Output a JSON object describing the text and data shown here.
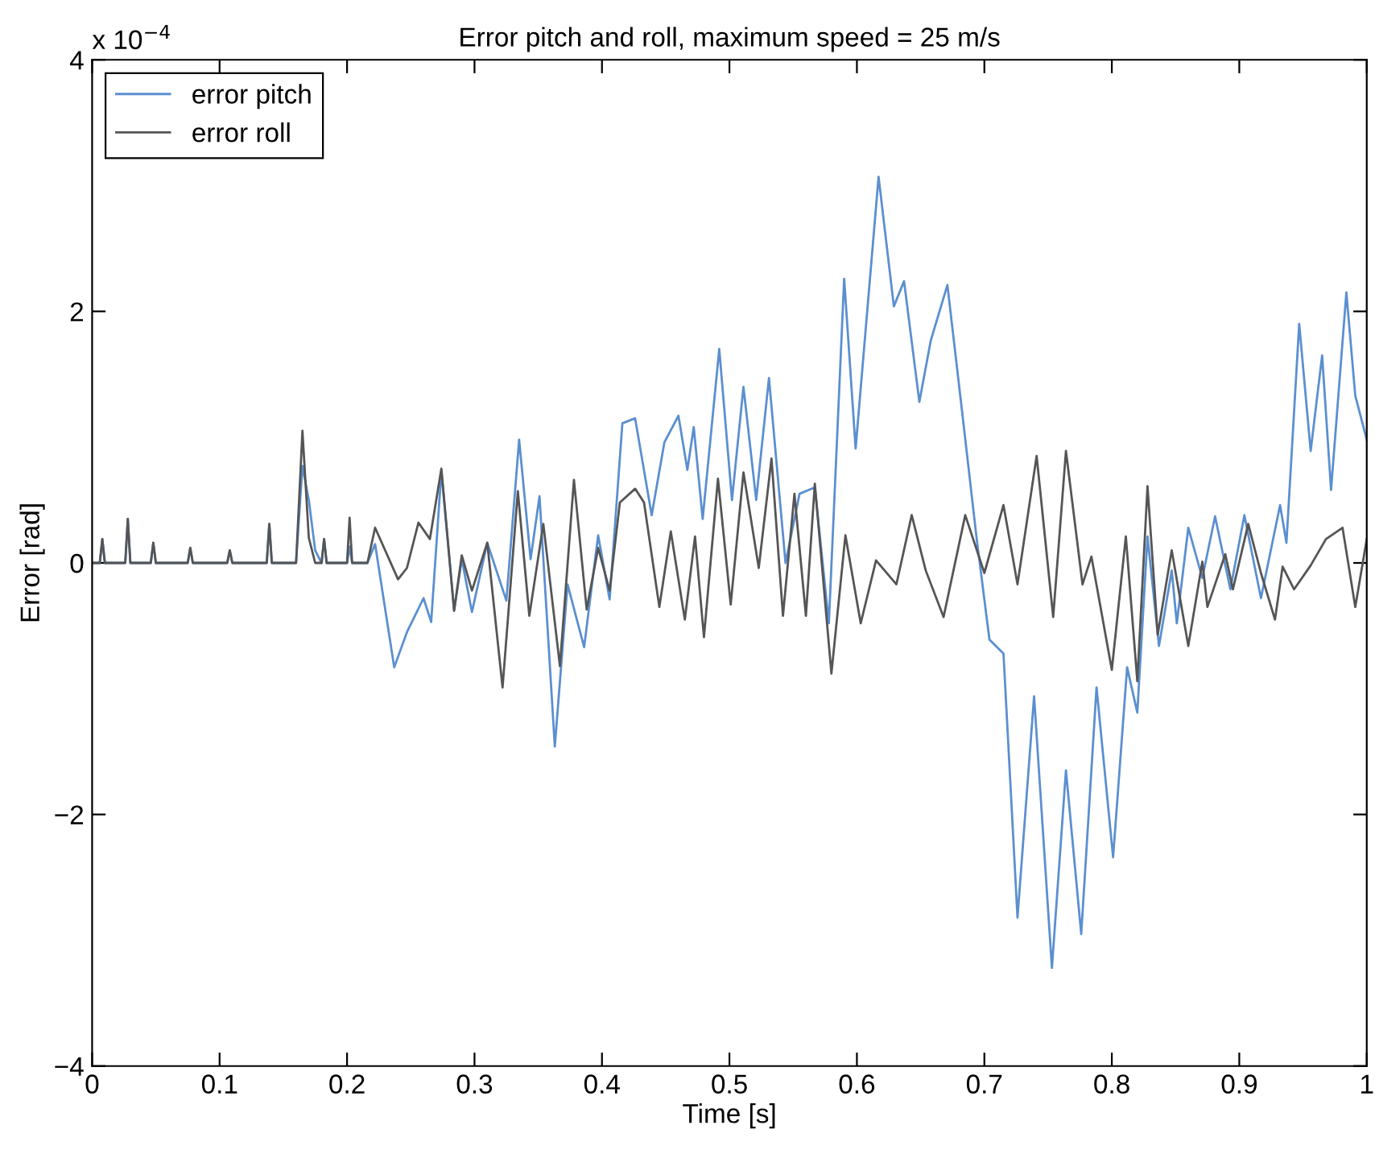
{
  "chart_data": {
    "type": "line",
    "title": "Error pitch and roll, maximum speed = 25 m/s",
    "xlabel": "Time [s]",
    "ylabel": "Error [rad]",
    "annotations": [
      "x 10$^{−4}$"
    ],
    "xlim": [
      0,
      1
    ],
    "xticks": [
      0,
      0.1,
      0.2,
      0.3,
      0.4,
      0.5,
      0.6,
      0.7,
      0.8,
      0.9,
      1
    ],
    "ylim": [
      -4,
      4
    ],
    "yticks": [
      {
        "value": -4,
        "label": "−4"
      },
      {
        "value": -2,
        "label": "−2"
      },
      0,
      2,
      4
    ],
    "grid": false,
    "legend": "top left",
    "marker": "none",
    "line_style": "solid",
    "series": [
      {
        "name": "error pitch",
        "color": "#5b8fd0",
        "x": [
          0,
          0.006,
          0.008,
          0.01,
          0.026,
          0.028,
          0.03,
          0.046,
          0.048,
          0.05,
          0.075,
          0.077,
          0.079,
          0.106,
          0.108,
          0.11,
          0.137,
          0.139,
          0.141,
          0.16,
          0.165,
          0.17,
          0.175,
          0.18,
          0.182,
          0.184,
          0.2,
          0.202,
          0.204,
          0.216,
          0.222,
          0.237,
          0.247,
          0.26,
          0.266,
          0.274,
          0.284,
          0.29,
          0.298,
          0.31,
          0.325,
          0.335,
          0.344,
          0.351,
          0.363,
          0.373,
          0.386,
          0.397,
          0.406,
          0.416,
          0.426,
          0.439,
          0.449,
          0.46,
          0.467,
          0.472,
          0.479,
          0.492,
          0.502,
          0.511,
          0.521,
          0.531,
          0.544,
          0.555,
          0.567,
          0.578,
          0.59,
          0.599,
          0.617,
          0.629,
          0.637,
          0.649,
          0.658,
          0.671,
          0.682,
          0.694,
          0.704,
          0.715,
          0.726,
          0.739,
          0.753,
          0.764,
          0.776,
          0.788,
          0.801,
          0.812,
          0.82,
          0.828,
          0.837,
          0.847,
          0.851,
          0.86,
          0.871,
          0.881,
          0.893,
          0.904,
          0.917,
          0.932,
          0.937,
          0.947,
          0.956,
          0.965,
          0.972,
          0.984,
          0.991,
          1.0
        ],
        "values": [
          0,
          0,
          0.19,
          0,
          0,
          0.35,
          0,
          0,
          0.16,
          0,
          0,
          0.12,
          0,
          0,
          0.1,
          0,
          0,
          0.31,
          0,
          0,
          0.77,
          0.5,
          0.1,
          0,
          0.19,
          0,
          0,
          0.13,
          0,
          0,
          0.15,
          -0.83,
          -0.55,
          -0.28,
          -0.47,
          0.73,
          -0.38,
          0.03,
          -0.39,
          0.16,
          -0.3,
          0.98,
          0.03,
          0.53,
          -1.46,
          -0.17,
          -0.67,
          0.22,
          -0.29,
          1.11,
          1.15,
          0.38,
          0.96,
          1.17,
          0.74,
          1.08,
          0.35,
          1.7,
          0.5,
          1.4,
          0.5,
          1.47,
          0,
          0.55,
          0.6,
          -0.48,
          2.26,
          0.91,
          3.07,
          2.04,
          2.24,
          1.28,
          1.77,
          2.21,
          1.25,
          0.19,
          -0.61,
          -0.72,
          -2.82,
          -1.06,
          -3.22,
          -1.65,
          -2.95,
          -0.99,
          -2.34,
          -0.83,
          -1.19,
          0.21,
          -0.66,
          -0.06,
          -0.48,
          0.28,
          -0.12,
          0.37,
          -0.21,
          0.38,
          -0.28,
          0.46,
          0.16,
          1.9,
          0.89,
          1.65,
          0.58,
          2.15,
          1.33,
          0.98
        ]
      },
      {
        "name": "error roll",
        "color": "#555555",
        "x": [
          0,
          0.006,
          0.008,
          0.01,
          0.026,
          0.028,
          0.03,
          0.046,
          0.048,
          0.05,
          0.075,
          0.077,
          0.079,
          0.106,
          0.108,
          0.11,
          0.137,
          0.139,
          0.141,
          0.16,
          0.165,
          0.17,
          0.175,
          0.18,
          0.182,
          0.184,
          0.2,
          0.202,
          0.204,
          0.216,
          0.222,
          0.24,
          0.247,
          0.256,
          0.265,
          0.274,
          0.284,
          0.29,
          0.298,
          0.31,
          0.322,
          0.334,
          0.343,
          0.354,
          0.367,
          0.378,
          0.388,
          0.397,
          0.406,
          0.414,
          0.426,
          0.433,
          0.445,
          0.454,
          0.465,
          0.473,
          0.48,
          0.491,
          0.501,
          0.511,
          0.523,
          0.533,
          0.542,
          0.551,
          0.56,
          0.567,
          0.58,
          0.591,
          0.603,
          0.615,
          0.631,
          0.643,
          0.654,
          0.668,
          0.685,
          0.7,
          0.715,
          0.726,
          0.741,
          0.754,
          0.764,
          0.777,
          0.784,
          0.8,
          0.811,
          0.82,
          0.828,
          0.836,
          0.847,
          0.86,
          0.871,
          0.875,
          0.889,
          0.895,
          0.907,
          0.917,
          0.928,
          0.934,
          0.943,
          0.956,
          0.968,
          0.981,
          0.991,
          1.0
        ],
        "values": [
          0,
          0,
          0.19,
          0,
          0,
          0.35,
          0,
          0,
          0.16,
          0,
          0,
          0.12,
          0,
          0,
          0.1,
          0,
          0,
          0.31,
          0,
          0,
          1.05,
          0.2,
          0,
          0,
          0.19,
          0,
          0,
          0.36,
          0,
          0,
          0.28,
          -0.13,
          -0.04,
          0.32,
          0.19,
          0.75,
          -0.38,
          0.06,
          -0.22,
          0.16,
          -0.99,
          0.57,
          -0.42,
          0.31,
          -0.82,
          0.66,
          -0.37,
          0.12,
          -0.22,
          0.48,
          0.59,
          0.48,
          -0.35,
          0.25,
          -0.45,
          0.21,
          -0.59,
          0.67,
          -0.33,
          0.72,
          -0.04,
          0.83,
          -0.42,
          0.55,
          -0.42,
          0.63,
          -0.88,
          0.22,
          -0.48,
          0.02,
          -0.17,
          0.38,
          -0.06,
          -0.43,
          0.38,
          -0.08,
          0.46,
          -0.17,
          0.85,
          -0.43,
          0.89,
          -0.17,
          0.05,
          -0.85,
          0.21,
          -0.94,
          0.61,
          -0.57,
          0.1,
          -0.66,
          0.01,
          -0.35,
          0.07,
          -0.21,
          0.31,
          -0.08,
          -0.45,
          -0.03,
          -0.21,
          -0.02,
          0.19,
          0.28,
          -0.35,
          0.19
        ]
      }
    ]
  }
}
